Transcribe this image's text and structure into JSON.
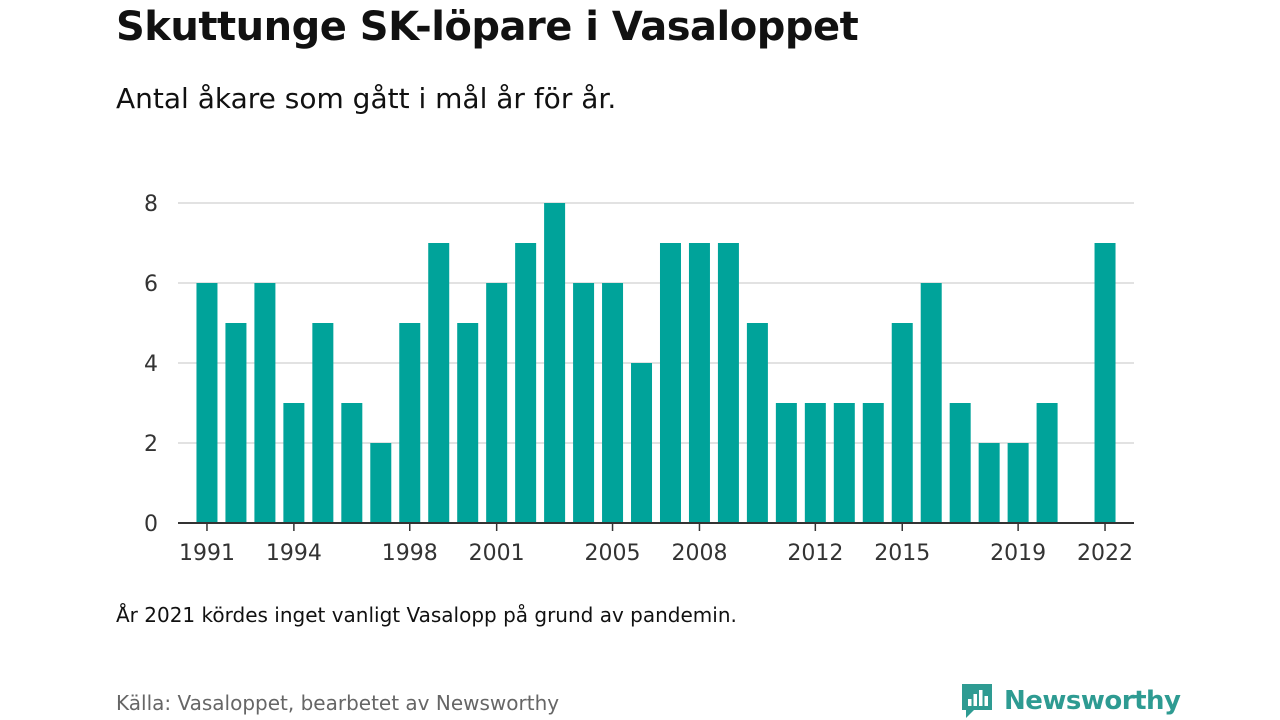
{
  "header": {
    "title": "Skuttunge SK-löpare i Vasaloppet",
    "subtitle": "Antal åkare som gått i mål år för år."
  },
  "footer": {
    "note": "År 2021 kördes inget vanligt Vasalopp på grund av pandemin.",
    "source": "Källa: Vasaloppet, bearbetet av Newsworthy",
    "brand": "Newsworthy"
  },
  "colors": {
    "bar": "#00a39a",
    "grid": "#d9d9d9",
    "axis": "#333333",
    "brand": "#2e9b92"
  },
  "chart_data": {
    "type": "bar",
    "title": "Skuttunge SK-löpare i Vasaloppet",
    "subtitle": "Antal åkare som gått i mål år för år.",
    "xlabel": "",
    "ylabel": "",
    "categories": [
      1991,
      1992,
      1993,
      1994,
      1995,
      1996,
      1997,
      1998,
      1999,
      2000,
      2001,
      2002,
      2003,
      2004,
      2005,
      2006,
      2007,
      2008,
      2009,
      2010,
      2011,
      2012,
      2013,
      2014,
      2015,
      2016,
      2017,
      2018,
      2019,
      2020,
      2022
    ],
    "values": [
      6,
      5,
      6,
      3,
      5,
      3,
      2,
      5,
      7,
      5,
      6,
      7,
      8,
      6,
      6,
      4,
      7,
      7,
      7,
      5,
      3,
      3,
      3,
      3,
      5,
      6,
      3,
      2,
      2,
      3,
      7
    ],
    "x_range": [
      1990,
      2023
    ],
    "x_ticks": [
      1991,
      1994,
      1998,
      2001,
      2005,
      2008,
      2012,
      2015,
      2019,
      2022
    ],
    "y_ticks": [
      0,
      2,
      4,
      6,
      8
    ],
    "ylim": [
      0,
      8
    ],
    "grid": true,
    "legend": "none"
  }
}
